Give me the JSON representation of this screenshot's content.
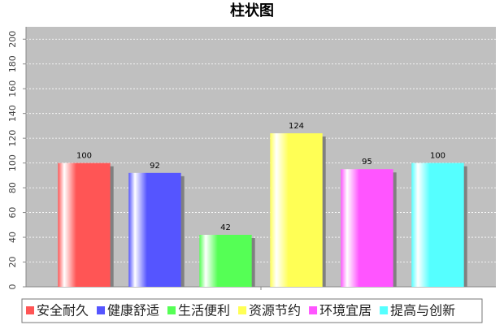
{
  "chart_data": {
    "type": "bar",
    "title": "柱状图",
    "categories": [
      null
    ],
    "series": [
      {
        "name": "安全耐久",
        "color": "#ff5555",
        "values": [
          100
        ]
      },
      {
        "name": "健康舒适",
        "color": "#5555ff",
        "values": [
          92
        ]
      },
      {
        "name": "生活便利",
        "color": "#55ff55",
        "values": [
          42
        ]
      },
      {
        "name": "资源节约",
        "color": "#ffff55",
        "values": [
          124
        ]
      },
      {
        "name": "环境宜居",
        "color": "#ff55ff",
        "values": [
          95
        ]
      },
      {
        "name": "提高与创新",
        "color": "#55ffff",
        "values": [
          100
        ]
      }
    ],
    "ylim": [
      0,
      210
    ],
    "yticks": [
      0,
      20,
      40,
      60,
      80,
      100,
      120,
      140,
      160,
      180,
      200
    ],
    "grid": true,
    "legend": "bottom"
  }
}
